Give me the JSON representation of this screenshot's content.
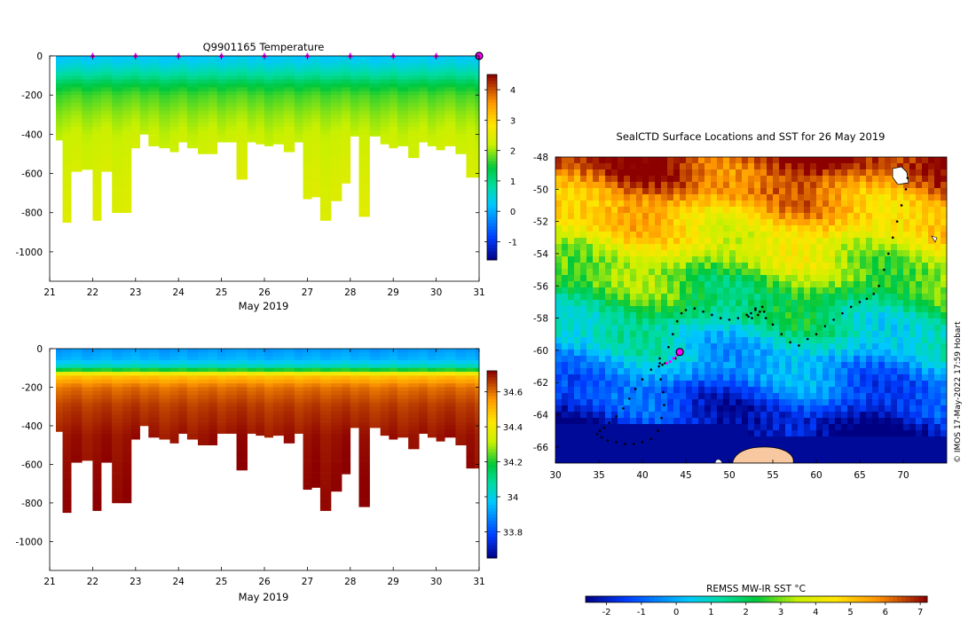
{
  "colors": {
    "marker": "#ff00ff",
    "track": "#000000",
    "land": "#f8c8a0"
  },
  "chart_data": [
    {
      "type": "heatmap",
      "id": "temperature-section",
      "title": "Q9901165  Temperature",
      "xlabel": "May 2019",
      "ylabel": "",
      "xlim": [
        21,
        31
      ],
      "ylim": [
        -1150,
        0
      ],
      "x_ticks": [
        "21",
        "22",
        "23",
        "24",
        "25",
        "26",
        "27",
        "28",
        "29",
        "30",
        "31"
      ],
      "y_ticks": [
        "0",
        "-200",
        "-400",
        "-600",
        "-800",
        "-1000"
      ],
      "profile_days": [
        21.2,
        21.4,
        21.6,
        21.9,
        22.1,
        22.3,
        22.6,
        22.8,
        23.0,
        23.2,
        23.4,
        23.7,
        23.9,
        24.1,
        24.3,
        24.6,
        24.8,
        25.0,
        25.2,
        25.5,
        25.7,
        25.9,
        26.1,
        26.3,
        26.6,
        26.8,
        27.0,
        27.2,
        27.4,
        27.7,
        27.9,
        28.1,
        28.3,
        28.6,
        28.8,
        29.0,
        29.2,
        29.5,
        29.7,
        29.9,
        30.1,
        30.3,
        30.6,
        30.8,
        31.0
      ],
      "profile_max_depth": [
        430,
        850,
        590,
        580,
        840,
        590,
        800,
        800,
        470,
        400,
        460,
        470,
        490,
        440,
        470,
        500,
        500,
        440,
        440,
        630,
        440,
        450,
        460,
        450,
        490,
        440,
        730,
        720,
        840,
        740,
        650,
        410,
        820,
        410,
        450,
        470,
        460,
        520,
        440,
        460,
        480,
        460,
        500,
        620,
        620
      ],
      "depth_levels": [
        0,
        50,
        100,
        150,
        200,
        300,
        400,
        600,
        800,
        1000
      ],
      "temperature_profile": [
        0.2,
        0.5,
        0.9,
        1.4,
        1.7,
        2.0,
        2.2,
        2.35,
        2.45,
        2.55
      ],
      "colorbar": {
        "min": -1.6,
        "max": 4.5,
        "ticks": [
          "-1",
          "0",
          "1",
          "2",
          "3",
          "4"
        ]
      },
      "markers_days": [
        22,
        23,
        24,
        25,
        26,
        27,
        28,
        29,
        30
      ],
      "current_position_day": 31
    },
    {
      "type": "heatmap",
      "id": "salinity-section",
      "title": "",
      "xlabel": "May 2019",
      "ylabel": "",
      "xlim": [
        21,
        31
      ],
      "ylim": [
        -1150,
        0
      ],
      "x_ticks": [
        "21",
        "22",
        "23",
        "24",
        "25",
        "26",
        "27",
        "28",
        "29",
        "30",
        "31"
      ],
      "y_ticks": [
        "0",
        "-200",
        "-400",
        "-600",
        "-800",
        "-1000"
      ],
      "depth_levels": [
        0,
        60,
        90,
        110,
        130,
        150,
        200,
        300,
        450,
        600,
        800
      ],
      "salinity_profile": [
        33.9,
        33.95,
        34.05,
        34.2,
        34.4,
        34.5,
        34.6,
        34.66,
        34.7,
        34.71,
        34.72
      ],
      "colorbar": {
        "min": 33.65,
        "max": 34.72,
        "ticks": [
          "33.8",
          "34",
          "34.2",
          "34.4",
          "34.6"
        ]
      }
    },
    {
      "type": "scatter",
      "id": "sst-map",
      "title": "SealCTD Surface Locations and SST for 26 May 2019",
      "xlabel": "",
      "ylabel": "",
      "xlim": [
        30,
        75
      ],
      "ylim": [
        -67,
        -48
      ],
      "x_ticks": [
        "30",
        "35",
        "40",
        "45",
        "50",
        "55",
        "60",
        "65",
        "70"
      ],
      "y_ticks": [
        "-48",
        "-50",
        "-52",
        "-54",
        "-56",
        "-58",
        "-60",
        "-62",
        "-64",
        "-66"
      ],
      "track_lon": [
        70.5,
        70.3,
        69.8,
        69.3,
        68.8,
        68.3,
        67.8,
        67.2,
        66.6,
        65.8,
        65.0,
        64.0,
        63.0,
        62.0,
        61.0,
        60.0,
        59.0,
        58.0,
        57.0,
        56.0,
        55.0,
        54.2,
        53.5,
        53.0,
        52.5,
        52.2,
        52.6,
        53.3,
        54.0,
        53.8,
        53.0,
        52.0,
        51.0,
        50.0,
        49.0,
        48.0,
        47.0,
        46.0,
        45.0,
        44.5,
        44.0,
        43.5,
        43.0,
        42.0,
        41.0,
        40.0,
        39.2,
        38.5,
        37.8,
        37.0,
        36.2,
        35.6,
        35.1,
        34.8,
        35.3,
        36.0,
        37.0,
        38.0,
        39.0,
        40.0,
        41.0,
        41.8,
        42.2,
        42.5,
        42.4,
        42.1,
        41.9,
        42.0,
        42.3,
        42.6,
        43.2,
        43.8,
        44.3
      ],
      "track_lat": [
        -49.3,
        -50.0,
        -51.0,
        -52.0,
        -53.0,
        -54.0,
        -55.0,
        -56.0,
        -56.5,
        -56.8,
        -57.0,
        -57.3,
        -57.7,
        -58.1,
        -58.5,
        -59.0,
        -59.3,
        -59.7,
        -59.5,
        -59.0,
        -58.4,
        -58.0,
        -57.6,
        -57.5,
        -57.7,
        -57.9,
        -58.0,
        -57.8,
        -57.6,
        -57.3,
        -57.4,
        -57.8,
        -58.0,
        -58.1,
        -58.0,
        -57.8,
        -57.6,
        -57.4,
        -57.5,
        -57.7,
        -58.2,
        -59.0,
        -59.8,
        -60.5,
        -61.2,
        -61.8,
        -62.4,
        -63.0,
        -63.6,
        -64.1,
        -64.5,
        -64.8,
        -65.0,
        -65.2,
        -65.4,
        -65.6,
        -65.7,
        -65.8,
        -65.8,
        -65.7,
        -65.5,
        -65.0,
        -64.2,
        -63.4,
        -62.6,
        -61.8,
        -61.0,
        -60.8,
        -60.9,
        -60.8,
        -60.7,
        -60.5,
        -60.1
      ],
      "recent_track_lon": [
        42.8,
        43.2,
        43.6,
        44.0,
        44.3
      ],
      "recent_track_lat": [
        -60.8,
        -60.7,
        -60.5,
        -60.3,
        -60.1
      ],
      "current_position": {
        "lon": 44.3,
        "lat": -60.1
      },
      "credit": "© IMOS 17-May-2022 17:59 Hobart",
      "colorbar": {
        "label": "REMSS MW-IR SST °C",
        "min": -2.6,
        "max": 7.2,
        "ticks": [
          "-2",
          "-1",
          "0",
          "1",
          "2",
          "3",
          "4",
          "5",
          "6",
          "7"
        ]
      }
    }
  ]
}
